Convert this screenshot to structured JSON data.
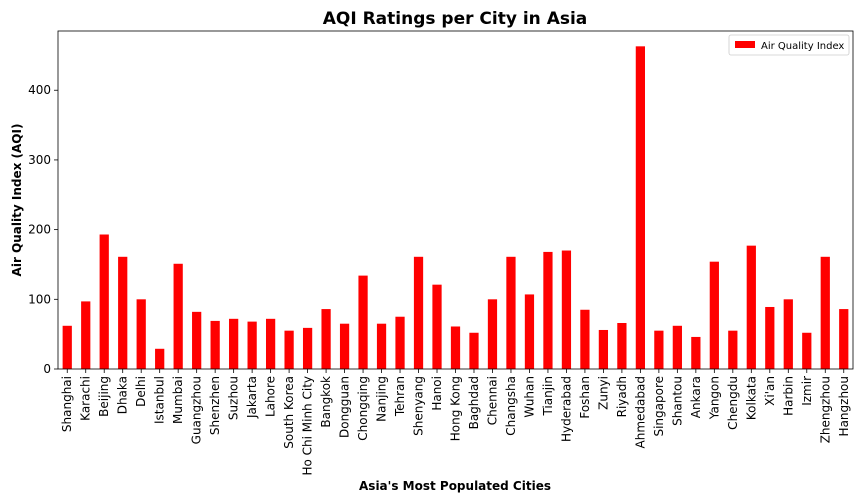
{
  "chart_data": {
    "type": "bar",
    "title": "AQI Ratings per City in Asia",
    "xlabel": "Asia's Most Populated Cities",
    "ylabel": "Air Quality Index (AQI)",
    "ylim": [
      0,
      485
    ],
    "yticks": [
      0,
      100,
      200,
      300,
      400
    ],
    "legend": "top-right",
    "grid": false,
    "categories": [
      "Shanghai",
      "Karachi",
      "Beijing",
      "Dhaka",
      "Delhi",
      "Istanbul",
      "Mumbai",
      "Guangzhou",
      "Shenzhen",
      "Suzhou",
      "Jakarta",
      "Lahore",
      "South Korea",
      "Ho Chi Minh City",
      "Bangkok",
      "Dongguan",
      "Chongqing",
      "Nanjing",
      "Tehran",
      "Shenyang",
      "Hanoi",
      "Hong Kong",
      "Baghdad",
      "Chennai",
      "Changsha",
      "Wuhan",
      "Tianjin",
      "Hyderabad",
      "Foshan",
      "Zunyi",
      "Riyadh",
      "Ahmedabad",
      "Singapore",
      "Shantou",
      "Ankara",
      "Yangon",
      "Chengdu",
      "Kolkata",
      "Xi'an",
      "Harbin",
      "Izmir",
      "Zhengzhou",
      "Hangzhou"
    ],
    "series": [
      {
        "name": "Air Quality Index",
        "color": "#ff0000",
        "values": [
          62,
          97,
          193,
          161,
          100,
          29,
          151,
          82,
          69,
          72,
          68,
          72,
          55,
          59,
          86,
          65,
          134,
          65,
          75,
          161,
          121,
          61,
          52,
          100,
          161,
          107,
          168,
          170,
          85,
          56,
          66,
          463,
          55,
          62,
          46,
          154,
          55,
          177,
          89,
          100,
          52,
          161,
          86
        ]
      }
    ]
  }
}
